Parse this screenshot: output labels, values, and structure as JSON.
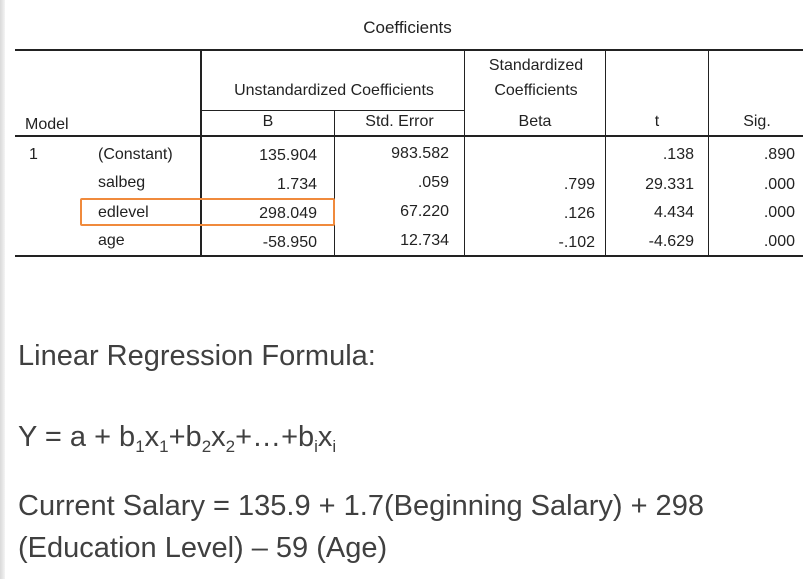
{
  "table": {
    "title": "Coefficients",
    "header": {
      "model": "Model",
      "unstandardized": "Unstandardized Coefficients",
      "standardized_line1": "Standardized",
      "standardized_line2": "Coefficients",
      "b": "B",
      "std_error": "Std. Error",
      "beta": "Beta",
      "t": "t",
      "sig": "Sig."
    },
    "model_number": "1",
    "rows": [
      {
        "name": "(Constant)",
        "b": "135.904",
        "std_error": "983.582",
        "beta": "",
        "t": ".138",
        "sig": ".890"
      },
      {
        "name": "salbeg",
        "b": "1.734",
        "std_error": ".059",
        "beta": ".799",
        "t": "29.331",
        "sig": ".000"
      },
      {
        "name": "edlevel",
        "b": "298.049",
        "std_error": "67.220",
        "beta": ".126",
        "t": "4.434",
        "sig": ".000"
      },
      {
        "name": "age",
        "b": "-58.950",
        "std_error": "12.734",
        "beta": "-.102",
        "t": "-4.629",
        "sig": ".000"
      }
    ],
    "highlight_color": "#f08a3c"
  },
  "formula": {
    "heading": "Linear Regression Formula:",
    "general": {
      "y": "Y",
      "eq": " = a + b",
      "sub1": "1",
      "x": "x",
      "sub1b": "1",
      "plus_b": "+b",
      "sub2": "2",
      "x2": "x",
      "sub2b": "2",
      "mid": "+…+b",
      "subi": "i",
      "xi": "x",
      "subib": "i"
    },
    "salary_line1": "Current Salary = 135.9 + 1.7(Beginning Salary) + 298",
    "salary_line2": "(Education Level) – 59 (Age)"
  }
}
